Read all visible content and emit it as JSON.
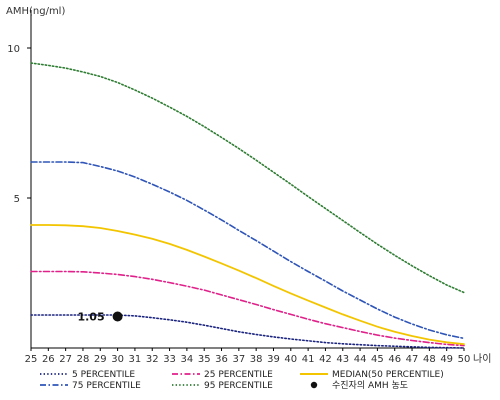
{
  "chart_data": {
    "type": "line",
    "title": "",
    "ylabel": "AMH(ng/ml)",
    "xlabel": "나이",
    "x": [
      25,
      26,
      27,
      28,
      29,
      30,
      31,
      32,
      33,
      34,
      35,
      36,
      37,
      38,
      39,
      40,
      41,
      42,
      43,
      44,
      45,
      46,
      47,
      48,
      49,
      50
    ],
    "xlim": [
      25,
      50
    ],
    "ylim": [
      0,
      11
    ],
    "yticks": [
      5,
      10
    ],
    "grid": false,
    "legend_position": "bottom",
    "series": [
      {
        "name": "5 PERCENTILE",
        "color": "#1a237e",
        "dash": "dotted",
        "values": [
          1.1,
          1.1,
          1.1,
          1.1,
          1.1,
          1.1,
          1.07,
          1.01,
          0.94,
          0.86,
          0.76,
          0.65,
          0.54,
          0.45,
          0.37,
          0.3,
          0.24,
          0.18,
          0.14,
          0.11,
          0.08,
          0.06,
          0.04,
          0.02,
          0.01,
          0.0
        ]
      },
      {
        "name": "25 PERCENTILE",
        "color": "#e0218a",
        "dash": "dashdot",
        "values": [
          2.55,
          2.55,
          2.55,
          2.54,
          2.5,
          2.45,
          2.38,
          2.29,
          2.18,
          2.06,
          1.93,
          1.77,
          1.61,
          1.45,
          1.28,
          1.12,
          0.96,
          0.81,
          0.68,
          0.55,
          0.43,
          0.33,
          0.25,
          0.18,
          0.12,
          0.08
        ]
      },
      {
        "name": "MEDIAN(50 PERCENTILE)",
        "color": "#f2c500",
        "dash": "solid",
        "values": [
          4.1,
          4.1,
          4.09,
          4.06,
          4.0,
          3.9,
          3.78,
          3.64,
          3.47,
          3.27,
          3.05,
          2.82,
          2.58,
          2.33,
          2.07,
          1.82,
          1.58,
          1.35,
          1.12,
          0.91,
          0.71,
          0.54,
          0.4,
          0.28,
          0.19,
          0.13
        ]
      },
      {
        "name": "75 PERCENTILE",
        "color": "#2f55b8",
        "dash": "dashdot",
        "values": [
          6.2,
          6.2,
          6.2,
          6.18,
          6.05,
          5.9,
          5.7,
          5.46,
          5.2,
          4.92,
          4.6,
          4.27,
          3.92,
          3.58,
          3.23,
          2.88,
          2.55,
          2.23,
          1.9,
          1.6,
          1.3,
          1.03,
          0.8,
          0.6,
          0.44,
          0.32
        ]
      },
      {
        "name": "95 PERCENTILE",
        "color": "#2e7d32",
        "dash": "dotted",
        "values": [
          9.5,
          9.42,
          9.33,
          9.2,
          9.05,
          8.85,
          8.6,
          8.33,
          8.03,
          7.72,
          7.38,
          7.02,
          6.65,
          6.26,
          5.86,
          5.46,
          5.05,
          4.65,
          4.25,
          3.85,
          3.46,
          3.09,
          2.74,
          2.41,
          2.1,
          1.85
        ]
      }
    ],
    "patient": {
      "name": "수진자의 AMH 농도",
      "x": 30,
      "y": 1.05,
      "label": "1.05",
      "color": "#111111"
    }
  }
}
